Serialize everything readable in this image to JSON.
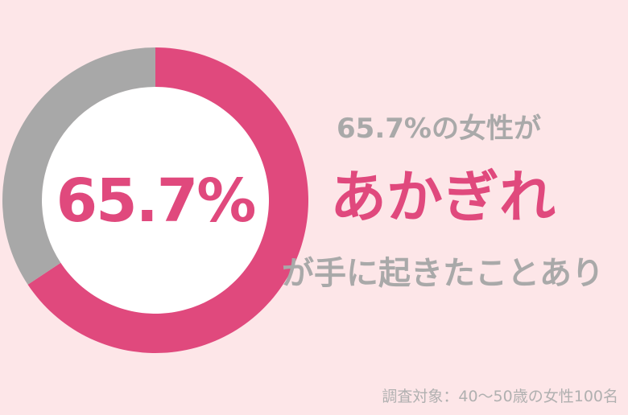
{
  "chart_data": {
    "type": "pie",
    "donut": true,
    "slices": [
      {
        "label": "あかぎれが手に起きたことあり",
        "value": 65.7,
        "color": "#e0497d"
      },
      {
        "label": "",
        "value": 34.3,
        "color": "#a8a8a8"
      }
    ],
    "center_label": "65.7%"
  },
  "headline": {
    "line1": "65.7%の女性が",
    "line2": "あかぎれ",
    "line3": "が手に起きたことあり"
  },
  "footer": "調査対象：40〜50歳の女性100名",
  "colors": {
    "accent": "#e0497d",
    "neutral": "#a8a8a8",
    "background": "#fde6e8"
  }
}
